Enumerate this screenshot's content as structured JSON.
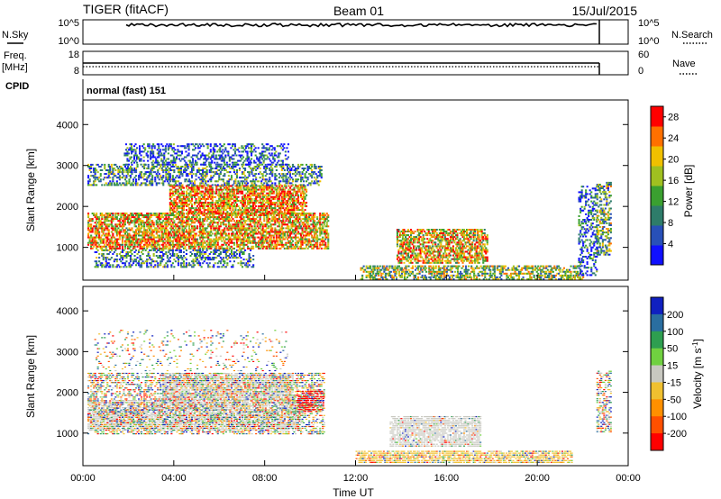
{
  "header": {
    "station": "TIGER (fitACF)",
    "beam": "Beam 01",
    "date": "15/Jul/2015"
  },
  "panel_labels": {
    "nsky": "N.Sky",
    "nsearch": "N.Search",
    "freq_top": "Freq.",
    "freq_unit": "[MHz]",
    "nave": "Nave",
    "cpid": "CPID",
    "cpid_value": "normal (fast) 151"
  },
  "small_axes": {
    "noise_left_ticks": [
      "10^5",
      "10^0"
    ],
    "noise_right_ticks": [
      "10^5",
      "10^0"
    ],
    "freq_ticks": [
      "18",
      "8"
    ],
    "nave_ticks": [
      "60",
      "0"
    ]
  },
  "colors": {
    "frame": "#000000",
    "noise_line": "#000000"
  },
  "chart_data": [
    {
      "type": "heatmap",
      "title": "",
      "xlabel": "",
      "ylabel": "Slant Range [km]",
      "x_ticks": [
        "00:00",
        "04:00",
        "08:00",
        "12:00",
        "16:00",
        "20:00",
        "00:00"
      ],
      "y_ticks": [
        "1000",
        "2000",
        "3000",
        "4000"
      ],
      "ylim": [
        200,
        4600
      ],
      "xlim_hours": [
        0,
        24
      ],
      "colorbar": {
        "label": "Power [dB]",
        "ticks": [
          "4",
          "8",
          "12",
          "16",
          "20",
          "24",
          "28"
        ],
        "range": [
          0,
          30
        ],
        "colors": [
          "#1010ff",
          "#2850b8",
          "#2e7c6a",
          "#3aa030",
          "#a0c020",
          "#f0c000",
          "#ff7000",
          "#ff0000"
        ]
      },
      "echo_regions": [
        {
          "t0": 0.2,
          "t1": 10.8,
          "r0": 950,
          "r1": 1850,
          "level": 0.7
        },
        {
          "t0": 3.8,
          "t1": 9.8,
          "r0": 1800,
          "r1": 2500,
          "level": 0.75
        },
        {
          "t0": 0.2,
          "t1": 10.5,
          "r0": 2500,
          "r1": 3000,
          "level": 0.35
        },
        {
          "t0": 1.8,
          "t1": 9.0,
          "r0": 3000,
          "r1": 3500,
          "level": 0.2
        },
        {
          "t0": 0.5,
          "t1": 7.5,
          "r0": 500,
          "r1": 950,
          "level": 0.3
        },
        {
          "t0": 13.8,
          "t1": 17.8,
          "r0": 600,
          "r1": 1450,
          "level": 0.65
        },
        {
          "t0": 12.2,
          "t1": 22.0,
          "r0": 200,
          "r1": 550,
          "level": 0.5
        },
        {
          "t0": 21.8,
          "t1": 22.6,
          "r0": 300,
          "r1": 2500,
          "level": 0.2
        },
        {
          "t0": 22.6,
          "t1": 23.2,
          "r0": 800,
          "r1": 2600,
          "level": 0.45
        }
      ]
    },
    {
      "type": "heatmap",
      "title": "",
      "xlabel": "Time UT",
      "ylabel": "Slant Range [km]",
      "x_ticks": [
        "00:00",
        "04:00",
        "08:00",
        "12:00",
        "16:00",
        "20:00",
        "00:00"
      ],
      "y_ticks": [
        "1000",
        "2000",
        "3000",
        "4000"
      ],
      "ylim": [
        200,
        4600
      ],
      "xlim_hours": [
        0,
        24
      ],
      "colorbar": {
        "label": "Velocity [m s^-1]",
        "ticks": [
          "200",
          "100",
          "50",
          "15",
          "-15",
          "-50",
          "-100",
          "-200"
        ],
        "colors": [
          "#1020c0",
          "#2a6ea0",
          "#2e9e50",
          "#70d040",
          "#c8c8c0",
          "#f0c030",
          "#ff9000",
          "#ff5000",
          "#ff0000"
        ]
      },
      "echo_regions": [
        {
          "t0": 0.2,
          "t1": 9.5,
          "r0": 1050,
          "r1": 1800,
          "kind": "gray"
        },
        {
          "t0": 3.5,
          "t1": 9.2,
          "r0": 1800,
          "r1": 2450,
          "kind": "gray"
        },
        {
          "t0": 0.2,
          "t1": 10.6,
          "r0": 950,
          "r1": 2450,
          "kind": "mixed"
        },
        {
          "t0": 9.4,
          "t1": 10.6,
          "r0": 1500,
          "r1": 2000,
          "kind": "red"
        },
        {
          "t0": 0.5,
          "t1": 9.0,
          "r0": 2500,
          "r1": 3500,
          "kind": "sparse"
        },
        {
          "t0": 13.5,
          "t1": 17.5,
          "r0": 650,
          "r1": 1400,
          "kind": "gray"
        },
        {
          "t0": 12.0,
          "t1": 21.5,
          "r0": 250,
          "r1": 550,
          "kind": "orange"
        },
        {
          "t0": 22.6,
          "t1": 23.2,
          "r0": 1000,
          "r1": 2500,
          "kind": "mixed"
        }
      ]
    }
  ]
}
